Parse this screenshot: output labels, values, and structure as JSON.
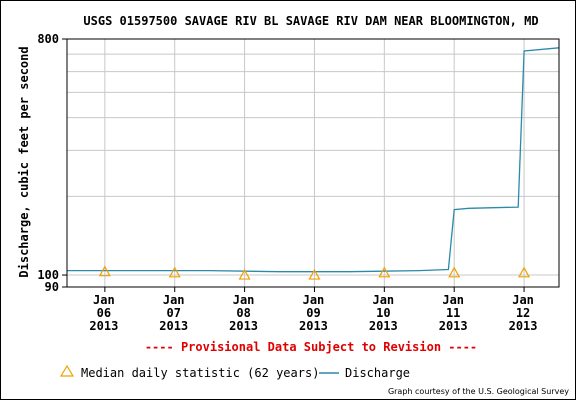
{
  "chart_data": {
    "type": "line",
    "title": "USGS 01597500 SAVAGE RIV BL SAVAGE RIV DAM NEAR BLOOMINGTON, MD",
    "ylabel": "Discharge, cubic feet per second",
    "y_scale": "log",
    "ylim": [
      90,
      800
    ],
    "y_tick_labels": [
      "800",
      "100",
      "90"
    ],
    "xlim": [
      "2013-01-05T11:00",
      "2013-01-12T12:00"
    ],
    "x_ticks": [
      {
        "x": "2013-01-06T00:00",
        "line1": "Jan",
        "line2": "06",
        "line3": "2013"
      },
      {
        "x": "2013-01-07T00:00",
        "line1": "Jan",
        "line2": "07",
        "line3": "2013"
      },
      {
        "x": "2013-01-08T00:00",
        "line1": "Jan",
        "line2": "08",
        "line3": "2013"
      },
      {
        "x": "2013-01-09T00:00",
        "line1": "Jan",
        "line2": "09",
        "line3": "2013"
      },
      {
        "x": "2013-01-10T00:00",
        "line1": "Jan",
        "line2": "10",
        "line3": "2013"
      },
      {
        "x": "2013-01-11T00:00",
        "line1": "Jan",
        "line2": "11",
        "line3": "2013"
      },
      {
        "x": "2013-01-12T00:00",
        "line1": "Jan",
        "line2": "12",
        "line3": "2013"
      }
    ],
    "grid": true,
    "series": [
      {
        "name": "Discharge",
        "color": "#2a8aaa",
        "points": [
          [
            "2013-01-05T11:00",
            104
          ],
          [
            "2013-01-06T12:00",
            104
          ],
          [
            "2013-01-07T12:00",
            104
          ],
          [
            "2013-01-08T12:00",
            103
          ],
          [
            "2013-01-09T12:00",
            103
          ],
          [
            "2013-01-10T12:00",
            104
          ],
          [
            "2013-01-10T22:00",
            105
          ],
          [
            "2013-01-11T00:00",
            178
          ],
          [
            "2013-01-11T05:00",
            180
          ],
          [
            "2013-01-11T22:00",
            182
          ],
          [
            "2013-01-12T00:00",
            720
          ],
          [
            "2013-01-12T12:00",
            740
          ]
        ]
      },
      {
        "name": "Median daily statistic (62 years)",
        "color": "#f0a000",
        "marker": "triangle",
        "points": [
          [
            "2013-01-06T00:00",
            103
          ],
          [
            "2013-01-07T00:00",
            102
          ],
          [
            "2013-01-08T00:00",
            100
          ],
          [
            "2013-01-09T00:00",
            100
          ],
          [
            "2013-01-10T00:00",
            102
          ],
          [
            "2013-01-11T00:00",
            102
          ],
          [
            "2013-01-12T00:00",
            102
          ]
        ]
      }
    ],
    "provisional_notice": "---- Provisional Data Subject to Revision ----",
    "legend": [
      {
        "label": "Median daily statistic (62 years)",
        "symbol": "triangle",
        "color": "#f0a000"
      },
      {
        "label": "Discharge",
        "symbol": "line",
        "color": "#2a8aaa"
      }
    ],
    "credit": "Graph courtesy of the U.S. Geological Survey"
  }
}
